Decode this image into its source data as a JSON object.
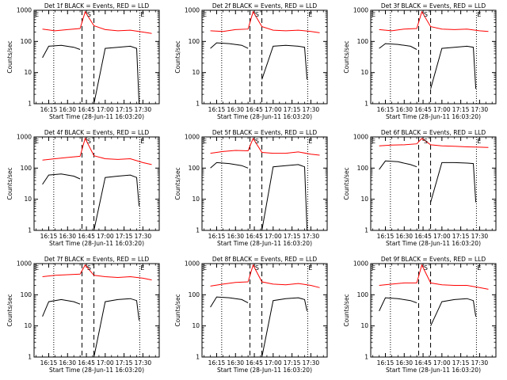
{
  "chart_data": [
    {
      "type": "line",
      "title": "Det 1f BLACK = Events, RED = LLD",
      "xlabel": "Start Time (28-Jun-11 16:03:20)",
      "ylabel": "Counts/sec",
      "x_ticks": [
        "16:15",
        "16:30",
        "16:45",
        "17:00",
        "17:15",
        "17:30"
      ],
      "y_ticks": [
        "1",
        "10",
        "100",
        "1000"
      ],
      "ylim": [
        1,
        1000
      ],
      "y_scale": "log",
      "markers": [
        "E",
        "S",
        "E"
      ],
      "series": [
        {
          "color": "#ff0000",
          "x": [
            "16:10",
            "16:20",
            "16:30",
            "16:40",
            "16:44",
            "16:51",
            "17:00",
            "17:10",
            "17:20",
            "17:30",
            "17:37"
          ],
          "values": [
            250,
            220,
            240,
            260,
            900,
            320,
            240,
            220,
            230,
            200,
            180
          ]
        },
        {
          "color": "#000000",
          "x": [
            "16:10",
            "16:15",
            "16:25",
            "16:35",
            "16:40"
          ],
          "values": [
            30,
            70,
            75,
            65,
            55
          ]
        },
        {
          "color": "#000000",
          "x": [
            "16:51",
            "17:00",
            "17:10",
            "17:20",
            "17:25",
            "17:27"
          ],
          "values": [
            1,
            60,
            65,
            70,
            60,
            1
          ]
        }
      ]
    },
    {
      "type": "line",
      "title": "Det 2f BLACK = Events, RED = LLD",
      "xlabel": "Start Time (28-Jun-11 16:03:20)",
      "ylabel": "Counts/sec",
      "x_ticks": [
        "16:15",
        "16:30",
        "16:45",
        "17:00",
        "17:15",
        "17:30"
      ],
      "y_ticks": [
        "1",
        "10",
        "100",
        "1000"
      ],
      "ylim": [
        1,
        1000
      ],
      "y_scale": "log",
      "markers": [
        "E",
        "S",
        "E"
      ],
      "series": [
        {
          "color": "#ff0000",
          "x": [
            "16:10",
            "16:20",
            "16:30",
            "16:40",
            "16:44",
            "16:51",
            "17:00",
            "17:10",
            "17:20",
            "17:30",
            "17:37"
          ],
          "values": [
            220,
            210,
            240,
            250,
            900,
            300,
            230,
            220,
            230,
            210,
            190
          ]
        },
        {
          "color": "#000000",
          "x": [
            "16:10",
            "16:15",
            "16:25",
            "16:35",
            "16:40"
          ],
          "values": [
            60,
            90,
            85,
            75,
            60
          ]
        },
        {
          "color": "#000000",
          "x": [
            "16:51",
            "17:00",
            "17:10",
            "17:20",
            "17:25",
            "17:27"
          ],
          "values": [
            6,
            70,
            75,
            70,
            65,
            6
          ]
        }
      ]
    },
    {
      "type": "line",
      "title": "Det 3f BLACK = Events, RED = LLD",
      "xlabel": "Start Time (28-Jun-11 16:03:20)",
      "ylabel": "Counts/sec",
      "x_ticks": [
        "16:15",
        "16:30",
        "16:45",
        "17:00",
        "17:15",
        "17:30"
      ],
      "y_ticks": [
        "1",
        "10",
        "100",
        "1000"
      ],
      "ylim": [
        1,
        1000
      ],
      "y_scale": "log",
      "markers": [
        "E",
        "S",
        "E"
      ],
      "series": [
        {
          "color": "#ff0000",
          "x": [
            "16:10",
            "16:20",
            "16:30",
            "16:40",
            "16:44",
            "16:51",
            "17:00",
            "17:10",
            "17:20",
            "17:30",
            "17:37"
          ],
          "values": [
            240,
            220,
            250,
            260,
            900,
            300,
            250,
            240,
            250,
            220,
            210
          ]
        },
        {
          "color": "#000000",
          "x": [
            "16:10",
            "16:15",
            "16:25",
            "16:35",
            "16:40"
          ],
          "values": [
            60,
            85,
            80,
            70,
            55
          ]
        },
        {
          "color": "#000000",
          "x": [
            "16:51",
            "17:00",
            "17:10",
            "17:20",
            "17:25",
            "17:27"
          ],
          "values": [
            3,
            60,
            65,
            70,
            65,
            3
          ]
        }
      ]
    },
    {
      "type": "line",
      "title": "Det 4f BLACK = Events, RED = LLD",
      "xlabel": "Start Time (28-Jun-11 16:03:20)",
      "ylabel": "Counts/sec",
      "x_ticks": [
        "16:15",
        "16:30",
        "16:45",
        "17:00",
        "17:15",
        "17:30"
      ],
      "y_ticks": [
        "1",
        "10",
        "100",
        "1000"
      ],
      "ylim": [
        1,
        1000
      ],
      "y_scale": "log",
      "markers": [
        "E",
        "S",
        "E"
      ],
      "series": [
        {
          "color": "#ff0000",
          "x": [
            "16:10",
            "16:20",
            "16:30",
            "16:40",
            "16:44",
            "16:51",
            "17:00",
            "17:10",
            "17:20",
            "17:30",
            "17:37"
          ],
          "values": [
            180,
            200,
            220,
            240,
            900,
            250,
            200,
            190,
            200,
            150,
            130
          ]
        },
        {
          "color": "#000000",
          "x": [
            "16:10",
            "16:15",
            "16:25",
            "16:35",
            "16:40"
          ],
          "values": [
            30,
            60,
            65,
            55,
            45
          ]
        },
        {
          "color": "#000000",
          "x": [
            "16:51",
            "17:00",
            "17:10",
            "17:20",
            "17:25",
            "17:27"
          ],
          "values": [
            1,
            50,
            55,
            60,
            50,
            6
          ]
        }
      ]
    },
    {
      "type": "line",
      "title": "Det 5f BLACK = Events, RED = LLD",
      "xlabel": "Start Time (28-Jun-11 16:03:20)",
      "ylabel": "Counts/sec",
      "x_ticks": [
        "16:15",
        "16:30",
        "16:45",
        "17:00",
        "17:15",
        "17:30"
      ],
      "y_ticks": [
        "1",
        "10",
        "100",
        "1000"
      ],
      "ylim": [
        1,
        1000
      ],
      "y_scale": "log",
      "markers": [
        "E",
        "S",
        "E"
      ],
      "series": [
        {
          "color": "#ff0000",
          "x": [
            "16:10",
            "16:20",
            "16:30",
            "16:40",
            "16:44",
            "16:51",
            "17:00",
            "17:10",
            "17:20",
            "17:30",
            "17:37"
          ],
          "values": [
            300,
            340,
            370,
            360,
            900,
            320,
            300,
            300,
            330,
            280,
            260
          ]
        },
        {
          "color": "#000000",
          "x": [
            "16:10",
            "16:15",
            "16:25",
            "16:35",
            "16:40"
          ],
          "values": [
            100,
            150,
            140,
            120,
            100
          ]
        },
        {
          "color": "#000000",
          "x": [
            "16:51",
            "17:00",
            "17:10",
            "17:20",
            "17:25",
            "17:27"
          ],
          "values": [
            1,
            110,
            120,
            130,
            110,
            1
          ]
        }
      ]
    },
    {
      "type": "line",
      "title": "Det 6f BLACK = Events, RED = LLD",
      "xlabel": "Start Time (28-Jun-11 16:03:20)",
      "ylabel": "Counts/sec",
      "x_ticks": [
        "16:15",
        "16:30",
        "16:45",
        "17:00",
        "17:15",
        "17:30"
      ],
      "y_ticks": [
        "1",
        "10",
        "100",
        "1000"
      ],
      "ylim": [
        1,
        1000
      ],
      "y_scale": "log",
      "markers": [
        "E",
        "S",
        "E"
      ],
      "series": [
        {
          "color": "#ff0000",
          "x": [
            "16:10",
            "16:20",
            "16:30",
            "16:40",
            "16:44",
            "16:51",
            "17:00",
            "17:10",
            "17:20",
            "17:30",
            "17:37"
          ],
          "values": [
            520,
            550,
            560,
            600,
            900,
            560,
            520,
            500,
            480,
            470,
            460
          ]
        },
        {
          "color": "#000000",
          "x": [
            "16:10",
            "16:15",
            "16:25",
            "16:35",
            "16:40"
          ],
          "values": [
            90,
            170,
            160,
            130,
            110
          ]
        },
        {
          "color": "#000000",
          "x": [
            "16:51",
            "17:00",
            "17:10",
            "17:20",
            "17:25",
            "17:27"
          ],
          "values": [
            8,
            150,
            150,
            145,
            140,
            8
          ]
        }
      ]
    },
    {
      "type": "line",
      "title": "Det 7f BLACK = Events, RED = LLD",
      "xlabel": "Start Time (28-Jun-11 16:03:20)",
      "ylabel": "Counts/sec",
      "x_ticks": [
        "16:15",
        "16:30",
        "16:45",
        "17:00",
        "17:15",
        "17:30"
      ],
      "y_ticks": [
        "1",
        "10",
        "100",
        "1000"
      ],
      "ylim": [
        1,
        1000
      ],
      "y_scale": "log",
      "markers": [
        "E",
        "S",
        "E"
      ],
      "series": [
        {
          "color": "#ff0000",
          "x": [
            "16:10",
            "16:20",
            "16:30",
            "16:40",
            "16:44",
            "16:51",
            "17:00",
            "17:10",
            "17:20",
            "17:30",
            "17:37"
          ],
          "values": [
            380,
            420,
            440,
            460,
            900,
            420,
            380,
            360,
            380,
            340,
            300
          ]
        },
        {
          "color": "#000000",
          "x": [
            "16:10",
            "16:15",
            "16:25",
            "16:35",
            "16:40"
          ],
          "values": [
            20,
            60,
            70,
            60,
            50
          ]
        },
        {
          "color": "#000000",
          "x": [
            "16:51",
            "17:00",
            "17:10",
            "17:20",
            "17:25",
            "17:27"
          ],
          "values": [
            1,
            60,
            70,
            75,
            65,
            15
          ]
        }
      ]
    },
    {
      "type": "line",
      "title": "Det 8f BLACK = Events, RED = LLD",
      "xlabel": "Start Time (28-Jun-11 16:03:20)",
      "ylabel": "Counts/sec",
      "x_ticks": [
        "16:15",
        "16:30",
        "16:45",
        "17:00",
        "17:15",
        "17:30"
      ],
      "y_ticks": [
        "1",
        "10",
        "100",
        "1000"
      ],
      "ylim": [
        1,
        1000
      ],
      "y_scale": "log",
      "markers": [
        "E",
        "S",
        "E"
      ],
      "series": [
        {
          "color": "#ff0000",
          "x": [
            "16:10",
            "16:20",
            "16:30",
            "16:40",
            "16:44",
            "16:51",
            "17:00",
            "17:10",
            "17:20",
            "17:30",
            "17:37"
          ],
          "values": [
            190,
            220,
            250,
            260,
            900,
            260,
            220,
            210,
            230,
            200,
            170
          ]
        },
        {
          "color": "#000000",
          "x": [
            "16:10",
            "16:15",
            "16:25",
            "16:35",
            "16:40"
          ],
          "values": [
            40,
            85,
            80,
            70,
            55
          ]
        },
        {
          "color": "#000000",
          "x": [
            "16:51",
            "17:00",
            "17:10",
            "17:20",
            "17:25",
            "17:27"
          ],
          "values": [
            1,
            65,
            75,
            80,
            70,
            30
          ]
        }
      ]
    },
    {
      "type": "line",
      "title": "Det 9f BLACK = Events, RED = LLD",
      "xlabel": "Start Time (28-Jun-11 16:03:20)",
      "ylabel": "Counts/sec",
      "x_ticks": [
        "16:15",
        "16:30",
        "16:45",
        "17:00",
        "17:15",
        "17:30"
      ],
      "y_ticks": [
        "1",
        "10",
        "100",
        "1000"
      ],
      "ylim": [
        1,
        1000
      ],
      "y_scale": "log",
      "markers": [
        "E",
        "S",
        "E"
      ],
      "series": [
        {
          "color": "#ff0000",
          "x": [
            "16:10",
            "16:20",
            "16:30",
            "16:40",
            "16:44",
            "16:51",
            "17:00",
            "17:10",
            "17:20",
            "17:30",
            "17:37"
          ],
          "values": [
            200,
            220,
            240,
            240,
            900,
            240,
            210,
            200,
            200,
            170,
            150
          ]
        },
        {
          "color": "#000000",
          "x": [
            "16:10",
            "16:15",
            "16:25",
            "16:35",
            "16:40"
          ],
          "values": [
            30,
            80,
            75,
            65,
            55
          ]
        },
        {
          "color": "#000000",
          "x": [
            "16:51",
            "17:00",
            "17:10",
            "17:20",
            "17:25",
            "17:27"
          ],
          "values": [
            10,
            60,
            70,
            75,
            65,
            20
          ]
        }
      ]
    }
  ]
}
